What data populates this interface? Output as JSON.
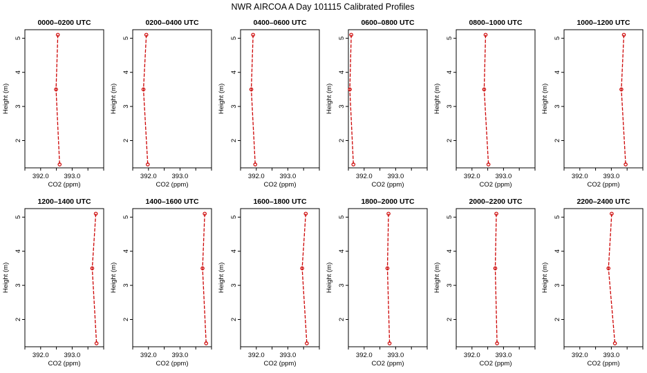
{
  "figure": {
    "title": "NWR AIRCOA A  Day 101115  Calibrated Profiles"
  },
  "chart_data": [
    {
      "type": "line",
      "title": "0000–0200 UTC",
      "xlabel": "CO2 (ppm)",
      "ylabel": "Height (m)",
      "xlim": [
        391.6,
        393.8
      ],
      "ylim": [
        1.2,
        5.25
      ],
      "xticks": [
        "392.0",
        "393.0"
      ],
      "yticks": [
        "2",
        "3",
        "4",
        "5"
      ],
      "grid": false,
      "x": [
        392.52,
        392.47,
        392.57
      ],
      "y": [
        5.1,
        3.5,
        1.3
      ],
      "series_color": "#cc0000"
    },
    {
      "type": "line",
      "title": "0200–0400 UTC",
      "xlabel": "CO2 (ppm)",
      "ylabel": "Height (m)",
      "xlim": [
        391.6,
        393.8
      ],
      "ylim": [
        1.2,
        5.25
      ],
      "xticks": [
        "392.0",
        "393.0"
      ],
      "yticks": [
        "2",
        "3",
        "4",
        "5"
      ],
      "grid": false,
      "x": [
        391.98,
        391.9,
        392.02
      ],
      "y": [
        5.1,
        3.5,
        1.3
      ],
      "series_color": "#cc0000"
    },
    {
      "type": "line",
      "title": "0400–0600 UTC",
      "xlabel": "CO2 (ppm)",
      "ylabel": "Height (m)",
      "xlim": [
        391.6,
        393.8
      ],
      "ylim": [
        1.2,
        5.25
      ],
      "xticks": [
        "392.0",
        "393.0"
      ],
      "yticks": [
        "2",
        "3",
        "4",
        "5"
      ],
      "grid": false,
      "x": [
        391.95,
        391.9,
        392.01
      ],
      "y": [
        5.1,
        3.5,
        1.3
      ],
      "series_color": "#cc0000"
    },
    {
      "type": "line",
      "title": "0600–0800 UTC",
      "xlabel": "CO2 (ppm)",
      "ylabel": "Height (m)",
      "xlim": [
        391.6,
        393.8
      ],
      "ylim": [
        1.2,
        5.25
      ],
      "xticks": [
        "392.0",
        "393.0"
      ],
      "yticks": [
        "2",
        "3",
        "4",
        "5"
      ],
      "grid": false,
      "x": [
        391.68,
        391.64,
        391.74
      ],
      "y": [
        5.1,
        3.5,
        1.3
      ],
      "series_color": "#cc0000"
    },
    {
      "type": "line",
      "title": "0800–1000 UTC",
      "xlabel": "CO2 (ppm)",
      "ylabel": "Height (m)",
      "xlim": [
        391.6,
        393.8
      ],
      "ylim": [
        1.2,
        5.25
      ],
      "xticks": [
        "392.0",
        "393.0"
      ],
      "yticks": [
        "2",
        "3",
        "4",
        "5"
      ],
      "grid": false,
      "x": [
        392.42,
        392.38,
        392.5
      ],
      "y": [
        5.1,
        3.5,
        1.3
      ],
      "series_color": "#cc0000"
    },
    {
      "type": "line",
      "title": "1000–1200 UTC",
      "xlabel": "CO2 (ppm)",
      "ylabel": "Height (m)",
      "xlim": [
        391.6,
        393.8
      ],
      "ylim": [
        1.2,
        5.25
      ],
      "xticks": [
        "392.0",
        "393.0"
      ],
      "yticks": [
        "2",
        "3",
        "4",
        "5"
      ],
      "grid": false,
      "x": [
        393.27,
        393.2,
        393.32
      ],
      "y": [
        5.1,
        3.5,
        1.3
      ],
      "series_color": "#cc0000"
    },
    {
      "type": "line",
      "title": "1200–1400 UTC",
      "xlabel": "CO2 (ppm)",
      "ylabel": "Height (m)",
      "xlim": [
        391.6,
        393.8
      ],
      "ylim": [
        1.2,
        5.25
      ],
      "xticks": [
        "392.0",
        "393.0"
      ],
      "yticks": [
        "2",
        "3",
        "4",
        "5"
      ],
      "grid": false,
      "x": [
        393.58,
        393.48,
        393.6
      ],
      "y": [
        5.1,
        3.5,
        1.3
      ],
      "series_color": "#cc0000"
    },
    {
      "type": "line",
      "title": "1400–1600 UTC",
      "xlabel": "CO2 (ppm)",
      "ylabel": "Height (m)",
      "xlim": [
        391.6,
        393.8
      ],
      "ylim": [
        1.2,
        5.25
      ],
      "xticks": [
        "392.0",
        "393.0"
      ],
      "yticks": [
        "2",
        "3",
        "4",
        "5"
      ],
      "grid": false,
      "x": [
        393.61,
        393.55,
        393.65
      ],
      "y": [
        5.1,
        3.5,
        1.3
      ],
      "series_color": "#cc0000"
    },
    {
      "type": "line",
      "title": "1600–1800 UTC",
      "xlabel": "CO2 (ppm)",
      "ylabel": "Height (m)",
      "xlim": [
        391.6,
        393.8
      ],
      "ylim": [
        1.2,
        5.25
      ],
      "xticks": [
        "392.0",
        "393.0"
      ],
      "yticks": [
        "2",
        "3",
        "4",
        "5"
      ],
      "grid": false,
      "x": [
        393.42,
        393.32,
        393.45
      ],
      "y": [
        5.1,
        3.5,
        1.3
      ],
      "series_color": "#cc0000"
    },
    {
      "type": "line",
      "title": "1800–2000 UTC",
      "xlabel": "CO2 (ppm)",
      "ylabel": "Height (m)",
      "xlim": [
        391.6,
        393.8
      ],
      "ylim": [
        1.2,
        5.25
      ],
      "xticks": [
        "392.0",
        "393.0"
      ],
      "yticks": [
        "2",
        "3",
        "4",
        "5"
      ],
      "grid": false,
      "x": [
        392.72,
        392.69,
        392.75
      ],
      "y": [
        5.1,
        3.5,
        1.3
      ],
      "series_color": "#cc0000"
    },
    {
      "type": "line",
      "title": "2000–2200 UTC",
      "xlabel": "CO2 (ppm)",
      "ylabel": "Height (m)",
      "xlim": [
        391.6,
        393.8
      ],
      "ylim": [
        1.2,
        5.25
      ],
      "xticks": [
        "392.0",
        "393.0"
      ],
      "yticks": [
        "2",
        "3",
        "4",
        "5"
      ],
      "grid": false,
      "x": [
        392.72,
        392.69,
        392.74
      ],
      "y": [
        5.1,
        3.5,
        1.3
      ],
      "series_color": "#cc0000"
    },
    {
      "type": "line",
      "title": "2200–2400 UTC",
      "xlabel": "CO2 (ppm)",
      "ylabel": "Height (m)",
      "xlim": [
        391.6,
        393.8
      ],
      "ylim": [
        1.2,
        5.25
      ],
      "xticks": [
        "392.0",
        "393.0"
      ],
      "yticks": [
        "2",
        "3",
        "4",
        "5"
      ],
      "grid": false,
      "x": [
        392.93,
        392.84,
        393.02
      ],
      "y": [
        5.1,
        3.5,
        1.3
      ],
      "series_color": "#cc0000"
    }
  ]
}
